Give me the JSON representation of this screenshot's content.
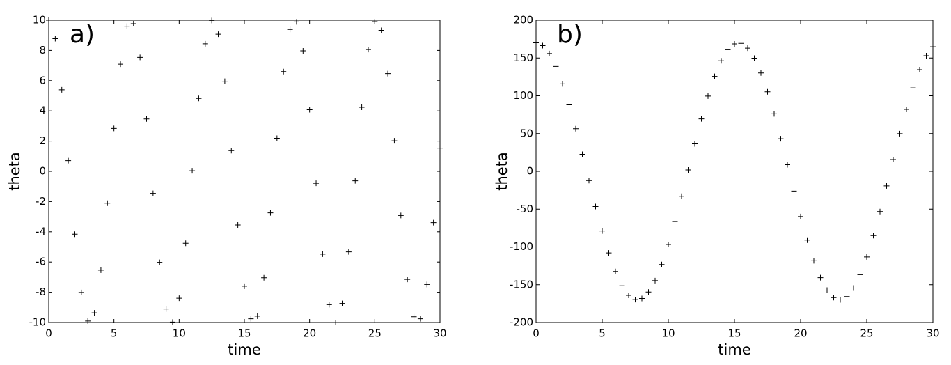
{
  "chart_data": [
    {
      "type": "scatter",
      "annotation": "a)",
      "x_label": "time",
      "y_label": "theta",
      "color": "#000000",
      "marker": "plus",
      "x": [
        0,
        0.5,
        1,
        1.5,
        2,
        2.5,
        3,
        3.5,
        4,
        4.5,
        5,
        5.5,
        6,
        6.5,
        7,
        7.5,
        8,
        8.5,
        9,
        9.5,
        10,
        10.5,
        11,
        11.5,
        12,
        12.5,
        13,
        13.5,
        14,
        14.5,
        15,
        15.5,
        16,
        16.5,
        17,
        17.5,
        18,
        18.5,
        19,
        19.5,
        20,
        20.5,
        21,
        21.5,
        22,
        22.5,
        23,
        23.5,
        24,
        24.5,
        25,
        25.5,
        26,
        26.5,
        27,
        27.5,
        28,
        28.5,
        29,
        29.5,
        30
      ],
      "values": [
        10,
        8.78,
        5.4,
        0.71,
        -4.16,
        -8.01,
        -9.9,
        -9.36,
        -6.54,
        -2.11,
        2.84,
        7.09,
        9.6,
        9.77,
        7.54,
        3.47,
        -1.46,
        -6.02,
        -9.11,
        -9.97,
        -8.39,
        -4.76,
        0.04,
        4.83,
        8.44,
        9.98,
        9.07,
        5.96,
        1.37,
        -3.55,
        -7.6,
        -9.75,
        -9.58,
        -7.04,
        -2.75,
        2.19,
        6.6,
        9.39,
        9.89,
        7.97,
        4.08,
        -0.79,
        -5.48,
        -8.82,
        -10,
        -8.74,
        -5.33,
        -0.63,
        4.24,
        8.06,
        9.91,
        9.33,
        6.47,
        2.02,
        -2.92,
        -7.15,
        -9.62,
        -9.75,
        -7.48,
        -3.39,
        1.54
      ],
      "xlim": [
        0,
        30
      ],
      "xticks": [
        0,
        5,
        10,
        15,
        20,
        25,
        30
      ],
      "ylim": [
        -10,
        10
      ],
      "yticks": [
        -10,
        -8,
        -6,
        -4,
        -2,
        0,
        2,
        4,
        6,
        8,
        10
      ]
    },
    {
      "type": "scatter",
      "annotation": "b)",
      "x_label": "time",
      "y_label": "theta",
      "color": "#000000",
      "marker": "plus",
      "x": [
        0,
        0.5,
        1,
        1.5,
        2,
        2.5,
        3,
        3.5,
        4,
        4.5,
        5,
        5.5,
        6,
        6.5,
        7,
        7.5,
        8,
        8.5,
        9,
        9.5,
        10,
        10.5,
        11,
        11.5,
        12,
        12.5,
        13,
        13.5,
        14,
        14.5,
        15,
        15.5,
        16,
        16.5,
        17,
        17.5,
        18,
        18.5,
        19,
        19.5,
        20,
        20.5,
        21,
        21.5,
        22,
        22.5,
        23,
        23.5,
        24,
        24.5,
        25,
        25.5,
        26,
        26.5,
        27,
        27.5,
        28,
        28.5,
        29,
        29.5,
        30
      ],
      "values": [
        170,
        166.4,
        155.9,
        138.8,
        115.8,
        88,
        56.5,
        22.6,
        -12.2,
        -46.5,
        -78.9,
        -107.9,
        -132.5,
        -151.4,
        -164,
        -169.7,
        -168.2,
        -159.7,
        -144.6,
        -123.3,
        -96.8,
        -66.3,
        -33,
        1.8,
        36.4,
        69.5,
        99.7,
        125.7,
        146.3,
        160.9,
        168.7,
        169.4,
        163,
        149.8,
        130.2,
        105.3,
        76.1,
        43.2,
        8.7,
        -26.1,
        -59.8,
        -91,
        -118.3,
        -140.7,
        -157.2,
        -167.1,
        -170,
        -165.7,
        -154.4,
        -136.7,
        -113.2,
        -85,
        -53.2,
        -19.2,
        15.7,
        49.9,
        82,
        110.5,
        134.6,
        153,
        164.9
      ],
      "xlim": [
        0,
        30
      ],
      "xticks": [
        0,
        5,
        10,
        15,
        20,
        25,
        30
      ],
      "ylim": [
        -200,
        200
      ],
      "yticks": [
        -200,
        -150,
        -100,
        -50,
        0,
        50,
        100,
        150,
        200
      ]
    }
  ]
}
